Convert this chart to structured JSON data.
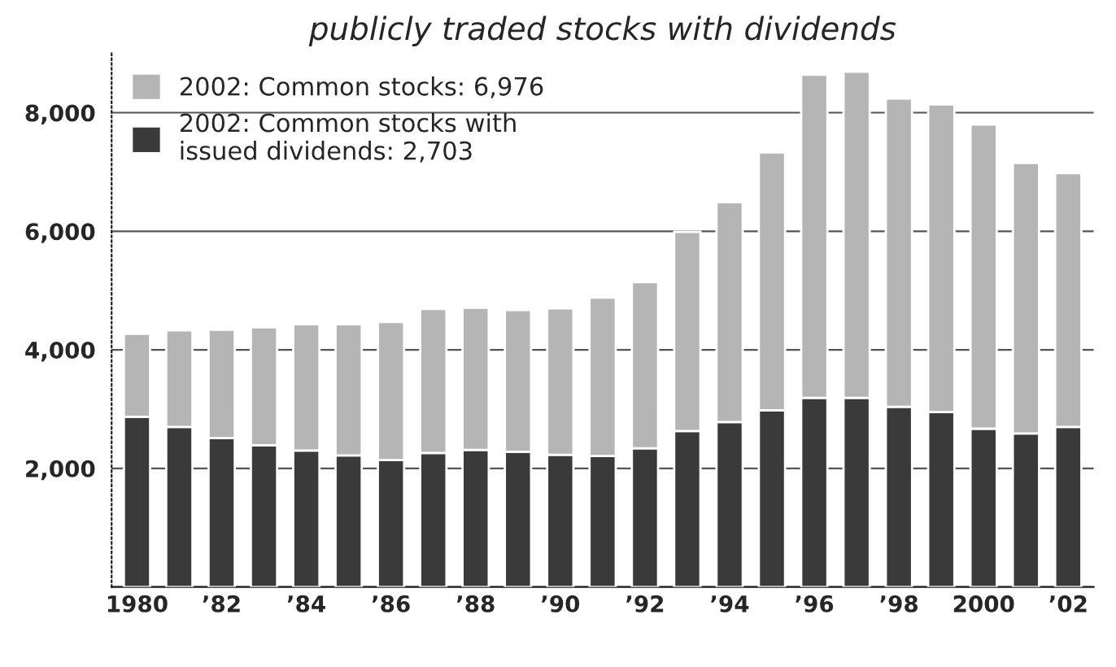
{
  "chart_data": {
    "type": "bar",
    "stacked": true,
    "title": "publicly traded stocks with dividends",
    "categories": [
      "1980",
      null,
      "’82",
      null,
      "’84",
      null,
      "’86",
      null,
      "’88",
      null,
      "’90",
      null,
      "’92",
      null,
      "’94",
      null,
      "’96",
      null,
      "’98",
      null,
      "2000",
      null,
      "’02"
    ],
    "series": [
      {
        "name": "2002: Common stocks with\nissued dividends: 2,703",
        "color": "#3a3a3a",
        "values": [
          2870,
          2700,
          2510,
          2390,
          2300,
          2220,
          2140,
          2260,
          2310,
          2280,
          2230,
          2210,
          2340,
          2630,
          2780,
          2980,
          3190,
          3190,
          3040,
          2950,
          2670,
          2590,
          2700
        ]
      },
      {
        "name": "2002: Common stocks: 6,976",
        "color": "#b5b5b5",
        "values": [
          1400,
          1630,
          1830,
          1990,
          2130,
          2210,
          2330,
          2430,
          2400,
          2390,
          2470,
          2670,
          2800,
          3360,
          3710,
          4350,
          5450,
          5500,
          5200,
          5190,
          5130,
          4560,
          4280
        ]
      }
    ],
    "ylim": [
      0,
      9000
    ],
    "yticks": [
      {
        "value": 0,
        "label": null
      },
      {
        "value": 2000,
        "label": "2,000"
      },
      {
        "value": 4000,
        "label": "4,000"
      },
      {
        "value": 6000,
        "label": "6,000"
      },
      {
        "value": 8000,
        "label": "8,000"
      }
    ],
    "grid": "y",
    "legend": "top left"
  }
}
